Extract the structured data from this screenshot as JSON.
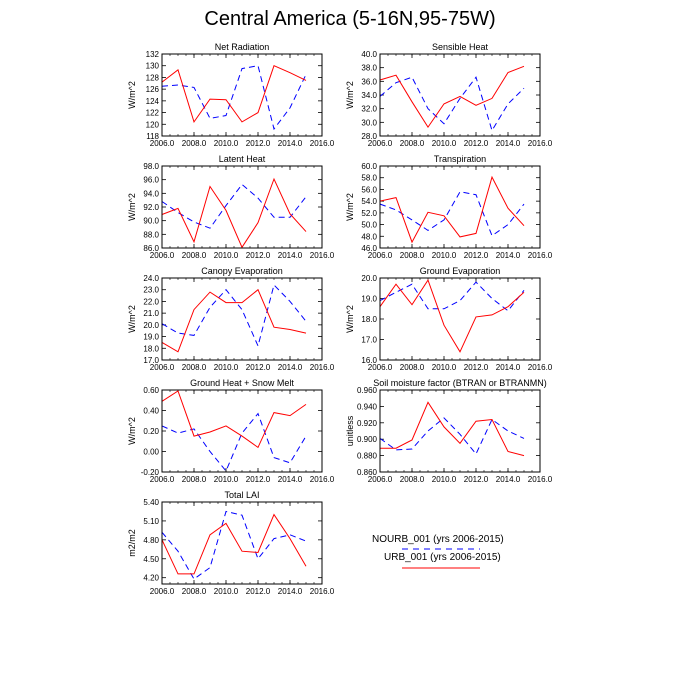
{
  "figure": {
    "title": "Central America (5-16N,95-75W)"
  },
  "legend": {
    "entries": [
      {
        "label": "NOURB_001 (yrs 2006-2015)",
        "color": "#0000ff",
        "dash": "dashed"
      },
      {
        "label": "URB_001 (yrs 2006-2015)",
        "color": "#ff0000",
        "dash": "solid"
      }
    ]
  },
  "chart_data": [
    {
      "type": "line",
      "title": "Net Radiation",
      "ylabel": "W/m^2",
      "xlim": [
        2006,
        2016
      ],
      "ylim": [
        118,
        132
      ],
      "xticks": [
        "2006.0",
        "2008.0",
        "2010.0",
        "2012.0",
        "2014.0",
        "2016.0"
      ],
      "yticks": [
        "118",
        "120",
        "122",
        "124",
        "126",
        "128",
        "130",
        "132"
      ],
      "x": [
        2006,
        2007,
        2008,
        2009,
        2010,
        2011,
        2012,
        2013,
        2014,
        2015
      ],
      "series": [
        {
          "name": "NOURB_001 (yrs 2006-2015)",
          "values": [
            126.5,
            126.7,
            126.3,
            121.0,
            121.5,
            129.5,
            130.0,
            119.2,
            122.8,
            128.5
          ]
        },
        {
          "name": "URB_001 (yrs 2006-2015)",
          "values": [
            127.2,
            129.3,
            120.4,
            124.3,
            124.2,
            120.4,
            122.0,
            130.0,
            128.8,
            127.5
          ]
        }
      ]
    },
    {
      "type": "line",
      "title": "Sensible Heat",
      "ylabel": "W/m^2",
      "xlim": [
        2006,
        2016
      ],
      "ylim": [
        28,
        40
      ],
      "xticks": [
        "2006.0",
        "2008.0",
        "2010.0",
        "2012.0",
        "2014.0",
        "2016.0"
      ],
      "yticks": [
        "28.0",
        "30.0",
        "32.0",
        "34.0",
        "36.0",
        "38.0",
        "40.0"
      ],
      "x": [
        2006,
        2007,
        2008,
        2009,
        2010,
        2011,
        2012,
        2013,
        2014,
        2015
      ],
      "series": [
        {
          "name": "NOURB_001 (yrs 2006-2015)",
          "values": [
            33.8,
            35.8,
            36.6,
            32.0,
            29.8,
            33.5,
            36.6,
            28.8,
            32.7,
            35.0
          ]
        },
        {
          "name": "URB_001 (yrs 2006-2015)",
          "values": [
            36.2,
            36.9,
            33.0,
            29.3,
            32.7,
            33.8,
            32.5,
            33.5,
            37.3,
            38.2
          ]
        }
      ]
    },
    {
      "type": "line",
      "title": "Latent Heat",
      "ylabel": "W/m^2",
      "xlim": [
        2006,
        2016
      ],
      "ylim": [
        86,
        98
      ],
      "xticks": [
        "2006.0",
        "2008.0",
        "2010.0",
        "2012.0",
        "2014.0",
        "2016.0"
      ],
      "yticks": [
        "86.0",
        "88.0",
        "90.0",
        "92.0",
        "94.0",
        "96.0",
        "98.0"
      ],
      "x": [
        2006,
        2007,
        2008,
        2009,
        2010,
        2011,
        2012,
        2013,
        2014,
        2015
      ],
      "series": [
        {
          "name": "NOURB_001 (yrs 2006-2015)",
          "values": [
            92.8,
            91.2,
            89.8,
            88.9,
            92.2,
            95.3,
            93.3,
            90.5,
            90.5,
            93.5
          ]
        },
        {
          "name": "URB_001 (yrs 2006-2015)",
          "values": [
            90.9,
            91.8,
            86.9,
            95.0,
            91.5,
            86.1,
            89.7,
            96.1,
            91.0,
            88.4
          ]
        }
      ]
    },
    {
      "type": "line",
      "title": "Transpiration",
      "ylabel": "W/m^2",
      "xlim": [
        2006,
        2016
      ],
      "ylim": [
        46,
        60
      ],
      "xticks": [
        "2006.0",
        "2008.0",
        "2010.0",
        "2012.0",
        "2014.0",
        "2016.0"
      ],
      "yticks": [
        "46.0",
        "48.0",
        "50.0",
        "52.0",
        "54.0",
        "56.0",
        "58.0",
        "60.0"
      ],
      "x": [
        2006,
        2007,
        2008,
        2009,
        2010,
        2011,
        2012,
        2013,
        2014,
        2015
      ],
      "series": [
        {
          "name": "NOURB_001 (yrs 2006-2015)",
          "values": [
            53.5,
            52.5,
            50.8,
            49.0,
            50.8,
            55.6,
            55.1,
            48.1,
            50.0,
            53.5
          ]
        },
        {
          "name": "URB_001 (yrs 2006-2015)",
          "values": [
            54.0,
            54.6,
            47.0,
            52.1,
            51.5,
            47.9,
            48.5,
            58.1,
            52.8,
            49.8
          ]
        }
      ]
    },
    {
      "type": "line",
      "title": "Canopy Evaporation",
      "ylabel": "W/m^2",
      "xlim": [
        2006,
        2016
      ],
      "ylim": [
        17,
        24
      ],
      "xticks": [
        "2006.0",
        "2008.0",
        "2010.0",
        "2012.0",
        "2014.0",
        "2016.0"
      ],
      "yticks": [
        "17.0",
        "18.0",
        "19.0",
        "20.0",
        "21.0",
        "22.0",
        "23.0",
        "24.0"
      ],
      "x": [
        2006,
        2007,
        2008,
        2009,
        2010,
        2011,
        2012,
        2013,
        2014,
        2015
      ],
      "series": [
        {
          "name": "NOURB_001 (yrs 2006-2015)",
          "values": [
            20.1,
            19.3,
            19.1,
            21.5,
            23.0,
            21.3,
            18.2,
            23.4,
            22.0,
            20.3
          ]
        },
        {
          "name": "URB_001 (yrs 2006-2015)",
          "values": [
            18.5,
            17.7,
            21.3,
            22.8,
            21.9,
            21.9,
            23.0,
            19.8,
            19.6,
            19.3
          ]
        }
      ]
    },
    {
      "type": "line",
      "title": "Ground Evaporation",
      "ylabel": "W/m^2",
      "xlim": [
        2006,
        2016
      ],
      "ylim": [
        16,
        20
      ],
      "xticks": [
        "2006.0",
        "2008.0",
        "2010.0",
        "2012.0",
        "2014.0",
        "2016.0"
      ],
      "yticks": [
        "16.0",
        "17.0",
        "18.0",
        "19.0",
        "20.0"
      ],
      "x": [
        2006,
        2007,
        2008,
        2009,
        2010,
        2011,
        2012,
        2013,
        2014,
        2015
      ],
      "series": [
        {
          "name": "NOURB_001 (yrs 2006-2015)",
          "values": [
            18.9,
            19.3,
            19.7,
            18.5,
            18.5,
            18.9,
            19.8,
            19.0,
            18.4,
            19.4
          ]
        },
        {
          "name": "URB_001 (yrs 2006-2015)",
          "values": [
            18.6,
            19.7,
            18.7,
            19.9,
            17.7,
            16.4,
            18.1,
            18.2,
            18.6,
            19.3
          ]
        }
      ]
    },
    {
      "type": "line",
      "title": "Ground Heat + Snow Melt",
      "ylabel": "W/m^2",
      "xlim": [
        2006,
        2016
      ],
      "ylim": [
        -0.2,
        0.6
      ],
      "xticks": [
        "2006.0",
        "2008.0",
        "2010.0",
        "2012.0",
        "2014.0",
        "2016.0"
      ],
      "yticks": [
        "-0.20",
        "0.00",
        "0.20",
        "0.40",
        "0.60"
      ],
      "x": [
        2006,
        2007,
        2008,
        2009,
        2010,
        2011,
        2012,
        2013,
        2014,
        2015
      ],
      "series": [
        {
          "name": "NOURB_001 (yrs 2006-2015)",
          "values": [
            0.25,
            0.18,
            0.22,
            0.0,
            -0.19,
            0.18,
            0.37,
            -0.06,
            -0.11,
            0.15
          ]
        },
        {
          "name": "URB_001 (yrs 2006-2015)",
          "values": [
            0.49,
            0.59,
            0.15,
            0.19,
            0.25,
            0.15,
            0.04,
            0.38,
            0.35,
            0.46
          ]
        }
      ]
    },
    {
      "type": "line",
      "title": "Soil moisture factor (BTRAN or BTRANMN)",
      "ylabel": "unitless",
      "xlim": [
        2006,
        2016
      ],
      "ylim": [
        0.86,
        0.96
      ],
      "xticks": [
        "2006.0",
        "2008.0",
        "2010.0",
        "2012.0",
        "2014.0",
        "2016.0"
      ],
      "yticks": [
        "0.860",
        "0.880",
        "0.900",
        "0.920",
        "0.940",
        "0.960"
      ],
      "x": [
        2006,
        2007,
        2008,
        2009,
        2010,
        2011,
        2012,
        2013,
        2014,
        2015
      ],
      "series": [
        {
          "name": "NOURB_001 (yrs 2006-2015)",
          "values": [
            0.901,
            0.887,
            0.888,
            0.91,
            0.926,
            0.906,
            0.882,
            0.924,
            0.91,
            0.901
          ]
        },
        {
          "name": "URB_001 (yrs 2006-2015)",
          "values": [
            0.889,
            0.889,
            0.899,
            0.945,
            0.915,
            0.895,
            0.922,
            0.924,
            0.885,
            0.88
          ]
        }
      ]
    },
    {
      "type": "line",
      "title": "Total LAI",
      "ylabel": "m2/m2",
      "xlim": [
        2006,
        2016
      ],
      "ylim": [
        4.1,
        5.4
      ],
      "xticks": [
        "2006.0",
        "2008.0",
        "2010.0",
        "2012.0",
        "2014.0",
        "2016.0"
      ],
      "yticks": [
        "4.20",
        "4.50",
        "4.80",
        "5.10",
        "5.40"
      ],
      "x": [
        2006,
        2007,
        2008,
        2009,
        2010,
        2011,
        2012,
        2013,
        2014,
        2015
      ],
      "series": [
        {
          "name": "NOURB_001 (yrs 2006-2015)",
          "values": [
            4.92,
            4.62,
            4.18,
            4.36,
            5.25,
            5.19,
            4.5,
            4.82,
            4.88,
            4.78
          ]
        },
        {
          "name": "URB_001 (yrs 2006-2015)",
          "values": [
            4.8,
            4.26,
            4.26,
            4.88,
            5.06,
            4.62,
            4.6,
            5.2,
            4.82,
            4.38
          ]
        }
      ]
    }
  ]
}
